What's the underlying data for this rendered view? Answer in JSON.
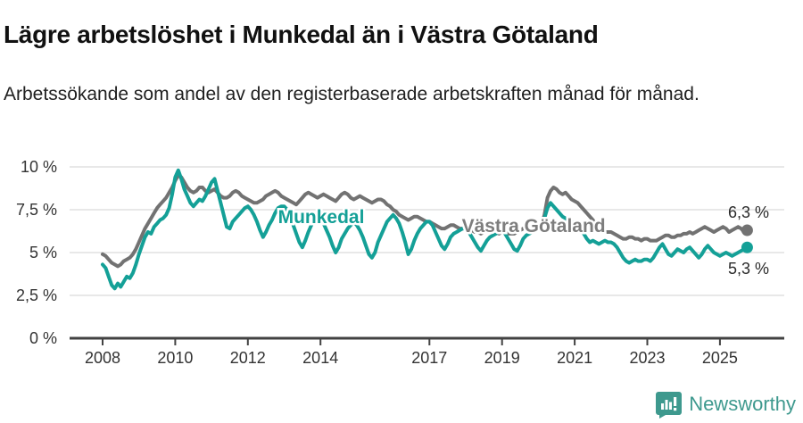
{
  "title": "Lägre arbetslöshet i Munkedal än i Västra Götaland",
  "subtitle": "Arbetssökande som andel av den registerbaserade arbetskraften månad för månad.",
  "footer": {
    "brand": "Newsworthy",
    "logo_icon": "newsworthy-speech-bubble-bar-chart-icon"
  },
  "colors": {
    "munkedal": "#14a097",
    "vastra_gotaland": "#727272",
    "munkedal_label": "#14a097",
    "vastra_gotaland_label": "#7d7d7d",
    "grid": "#e0e0e0",
    "axis": "#424242",
    "tick_text": "#333333",
    "end_label_text": "#2b2b2b",
    "brand": "#3e998e",
    "background": "#ffffff"
  },
  "chart_data": {
    "type": "line",
    "title": "Lägre arbetslöshet i Munkedal än i Västra Götaland",
    "subtitle": "Arbetssökande som andel av den registerbaserade arbetskraften månad för månad.",
    "xlabel": "",
    "ylabel": "",
    "x_unit": "year-month, monthly from 2008-01 to 2025-10",
    "x_start_year": 2008,
    "points_per_year": 12,
    "x_ticks": [
      2008,
      2010,
      2012,
      2014,
      2017,
      2019,
      2021,
      2023,
      2025
    ],
    "x_tick_labels": [
      "2008",
      "2010",
      "2012",
      "2014",
      "2017",
      "2019",
      "2021",
      "2023",
      "2025"
    ],
    "y_ticks": [
      0,
      2.5,
      5,
      7.5,
      10
    ],
    "y_tick_labels": [
      "0 %",
      "2,5 %",
      "5 %",
      "7,5 %",
      "10 %"
    ],
    "ylim": [
      0,
      10.5
    ],
    "grid": true,
    "legend": "inline-labels",
    "series": [
      {
        "name": "Västra Götaland",
        "slug": "vastra-gotaland",
        "color": "#727272",
        "label_color": "#7d7d7d",
        "end_label": "6,3 %",
        "end_value": 6.3,
        "label_pos": {
          "year": 2019.87,
          "pct": 6.56
        },
        "values": [
          4.9,
          4.8,
          4.6,
          4.4,
          4.3,
          4.2,
          4.3,
          4.5,
          4.6,
          4.7,
          4.9,
          5.2,
          5.6,
          6.0,
          6.4,
          6.7,
          7.0,
          7.3,
          7.6,
          7.8,
          8.0,
          8.2,
          8.5,
          8.8,
          9.2,
          9.5,
          9.4,
          9.1,
          8.8,
          8.6,
          8.5,
          8.6,
          8.8,
          8.8,
          8.6,
          8.5,
          8.6,
          8.7,
          8.5,
          8.3,
          8.2,
          8.2,
          8.3,
          8.5,
          8.6,
          8.5,
          8.3,
          8.2,
          8.1,
          8.0,
          7.9,
          7.9,
          8.0,
          8.1,
          8.3,
          8.4,
          8.5,
          8.6,
          8.5,
          8.3,
          8.2,
          8.1,
          8.0,
          7.9,
          7.8,
          8.0,
          8.2,
          8.4,
          8.5,
          8.4,
          8.3,
          8.2,
          8.3,
          8.4,
          8.3,
          8.2,
          8.1,
          8.0,
          8.2,
          8.4,
          8.5,
          8.4,
          8.2,
          8.1,
          8.2,
          8.3,
          8.2,
          8.1,
          8.0,
          7.9,
          8.0,
          8.1,
          8.1,
          8.0,
          7.8,
          7.7,
          7.5,
          7.4,
          7.2,
          7.1,
          7.0,
          6.9,
          7.0,
          7.1,
          7.1,
          7.0,
          6.9,
          6.8,
          6.8,
          6.7,
          6.6,
          6.5,
          6.4,
          6.4,
          6.5,
          6.6,
          6.6,
          6.5,
          6.4,
          6.4,
          6.4,
          6.3,
          6.3,
          6.2,
          6.2,
          6.1,
          6.2,
          6.3,
          6.3,
          6.2,
          6.2,
          6.1,
          6.2,
          6.2,
          6.1,
          6.1,
          6.1,
          6.2,
          6.3,
          6.4,
          6.4,
          6.3,
          6.3,
          6.4,
          6.5,
          6.6,
          7.2,
          8.2,
          8.6,
          8.8,
          8.7,
          8.5,
          8.4,
          8.5,
          8.3,
          8.1,
          8.0,
          7.9,
          7.7,
          7.5,
          7.3,
          7.1,
          6.9,
          6.6,
          6.4,
          6.3,
          6.2,
          6.2,
          6.2,
          6.1,
          6.0,
          5.9,
          5.8,
          5.8,
          5.9,
          5.9,
          5.8,
          5.8,
          5.7,
          5.8,
          5.8,
          5.7,
          5.7,
          5.7,
          5.8,
          5.9,
          6.0,
          6.0,
          5.9,
          5.9,
          6.0,
          6.0,
          6.1,
          6.1,
          6.2,
          6.1,
          6.2,
          6.3,
          6.4,
          6.5,
          6.4,
          6.3,
          6.2,
          6.3,
          6.4,
          6.5,
          6.4,
          6.2,
          6.3,
          6.4,
          6.5,
          6.4,
          6.2,
          6.3
        ]
      },
      {
        "name": "Munkedal",
        "slug": "munkedal",
        "color": "#14a097",
        "label_color": "#14a097",
        "end_label": "5,3 %",
        "end_value": 5.3,
        "label_pos": {
          "year": 2014.02,
          "pct": 7.08
        },
        "values": [
          4.3,
          4.1,
          3.6,
          3.1,
          2.9,
          3.2,
          3.0,
          3.3,
          3.6,
          3.5,
          3.8,
          4.3,
          4.9,
          5.4,
          5.9,
          6.2,
          6.1,
          6.5,
          6.7,
          6.9,
          7.0,
          7.2,
          7.6,
          8.4,
          9.4,
          9.8,
          9.3,
          8.7,
          8.3,
          7.9,
          7.7,
          7.9,
          8.1,
          8.0,
          8.3,
          8.7,
          9.1,
          9.3,
          8.6,
          7.9,
          7.2,
          6.5,
          6.4,
          6.8,
          7.0,
          7.2,
          7.4,
          7.6,
          7.7,
          7.5,
          7.2,
          6.8,
          6.3,
          5.9,
          6.2,
          6.6,
          6.9,
          7.3,
          7.6,
          7.7,
          7.7,
          7.5,
          7.0,
          6.6,
          6.1,
          5.6,
          5.3,
          5.7,
          6.2,
          6.6,
          6.9,
          7.1,
          7.0,
          6.7,
          6.3,
          5.9,
          5.4,
          5.0,
          5.3,
          5.8,
          6.1,
          6.4,
          6.6,
          6.8,
          6.6,
          6.3,
          5.9,
          5.4,
          4.9,
          4.7,
          5.0,
          5.6,
          6.0,
          6.4,
          6.8,
          7.0,
          7.2,
          7.0,
          6.7,
          6.2,
          5.6,
          4.9,
          5.2,
          5.7,
          6.1,
          6.4,
          6.6,
          6.8,
          6.8,
          6.6,
          6.2,
          5.8,
          5.4,
          5.2,
          5.5,
          5.9,
          6.1,
          6.2,
          6.3,
          6.4,
          6.4,
          6.2,
          5.9,
          5.6,
          5.3,
          5.1,
          5.4,
          5.7,
          5.9,
          6.0,
          6.1,
          6.2,
          6.3,
          6.1,
          5.8,
          5.5,
          5.2,
          5.1,
          5.4,
          5.8,
          6.0,
          6.1,
          6.2,
          6.3,
          6.4,
          6.5,
          7.0,
          7.6,
          7.9,
          7.7,
          7.5,
          7.3,
          7.1,
          7.0,
          6.9,
          6.8,
          6.7,
          6.5,
          6.3,
          6.1,
          5.8,
          5.6,
          5.7,
          5.6,
          5.5,
          5.6,
          5.7,
          5.6,
          5.6,
          5.5,
          5.3,
          5.0,
          4.7,
          4.5,
          4.4,
          4.5,
          4.6,
          4.5,
          4.5,
          4.6,
          4.6,
          4.5,
          4.7,
          5.0,
          5.3,
          5.5,
          5.2,
          4.9,
          4.8,
          5.0,
          5.2,
          5.1,
          5.0,
          5.2,
          5.3,
          5.1,
          4.9,
          4.7,
          4.9,
          5.2,
          5.4,
          5.2,
          5.0,
          4.9,
          4.8,
          4.9,
          5.0,
          4.9,
          4.8,
          4.9,
          5.0,
          5.1,
          5.2,
          5.3
        ]
      }
    ]
  }
}
